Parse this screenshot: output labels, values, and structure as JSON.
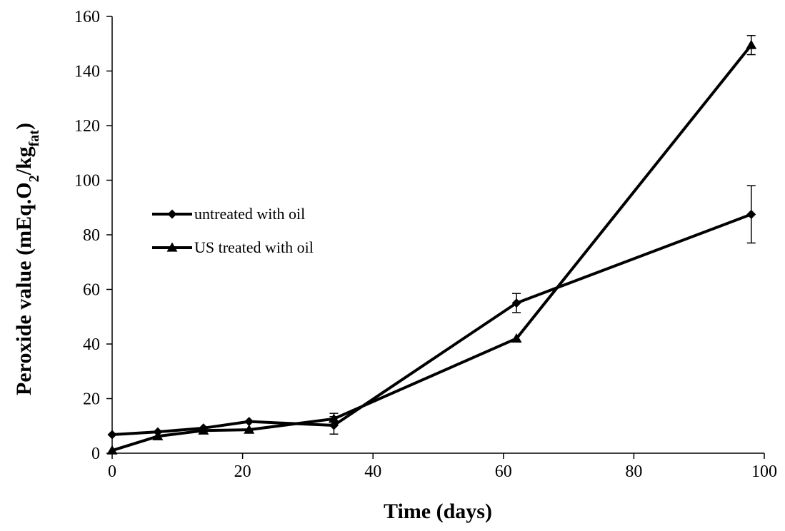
{
  "chart_data": {
    "type": "line",
    "title": "",
    "xlabel": "Time (days)",
    "ylabel": {
      "main": "Peroxide value (mEq.O",
      "sub1": "2",
      "mid": "/kg",
      "sub2": "fat",
      "end": ")"
    },
    "xlim": [
      0,
      100
    ],
    "ylim": [
      0,
      160
    ],
    "xticks": [
      0,
      20,
      40,
      60,
      80,
      100
    ],
    "yticks": [
      0,
      20,
      40,
      60,
      80,
      100,
      120,
      140,
      160
    ],
    "grid": false,
    "legend_position": "left-middle",
    "series": [
      {
        "name": "untreated with oil",
        "marker": "diamond",
        "color": "#000000",
        "x": [
          0,
          7,
          14,
          21,
          34,
          62,
          98
        ],
        "y": [
          6.8,
          7.8,
          9.2,
          11.6,
          10.2,
          55.0,
          87.5
        ],
        "err": [
          0,
          0,
          0,
          0,
          3.2,
          3.5,
          10.5
        ]
      },
      {
        "name": "US treated with oil",
        "marker": "triangle",
        "color": "#000000",
        "x": [
          0,
          7,
          14,
          21,
          34,
          62,
          98
        ],
        "y": [
          1.0,
          6.2,
          8.3,
          8.6,
          12.6,
          42.0,
          149.5
        ],
        "err": [
          0,
          0,
          0,
          0,
          2.0,
          0,
          3.5
        ]
      }
    ]
  }
}
